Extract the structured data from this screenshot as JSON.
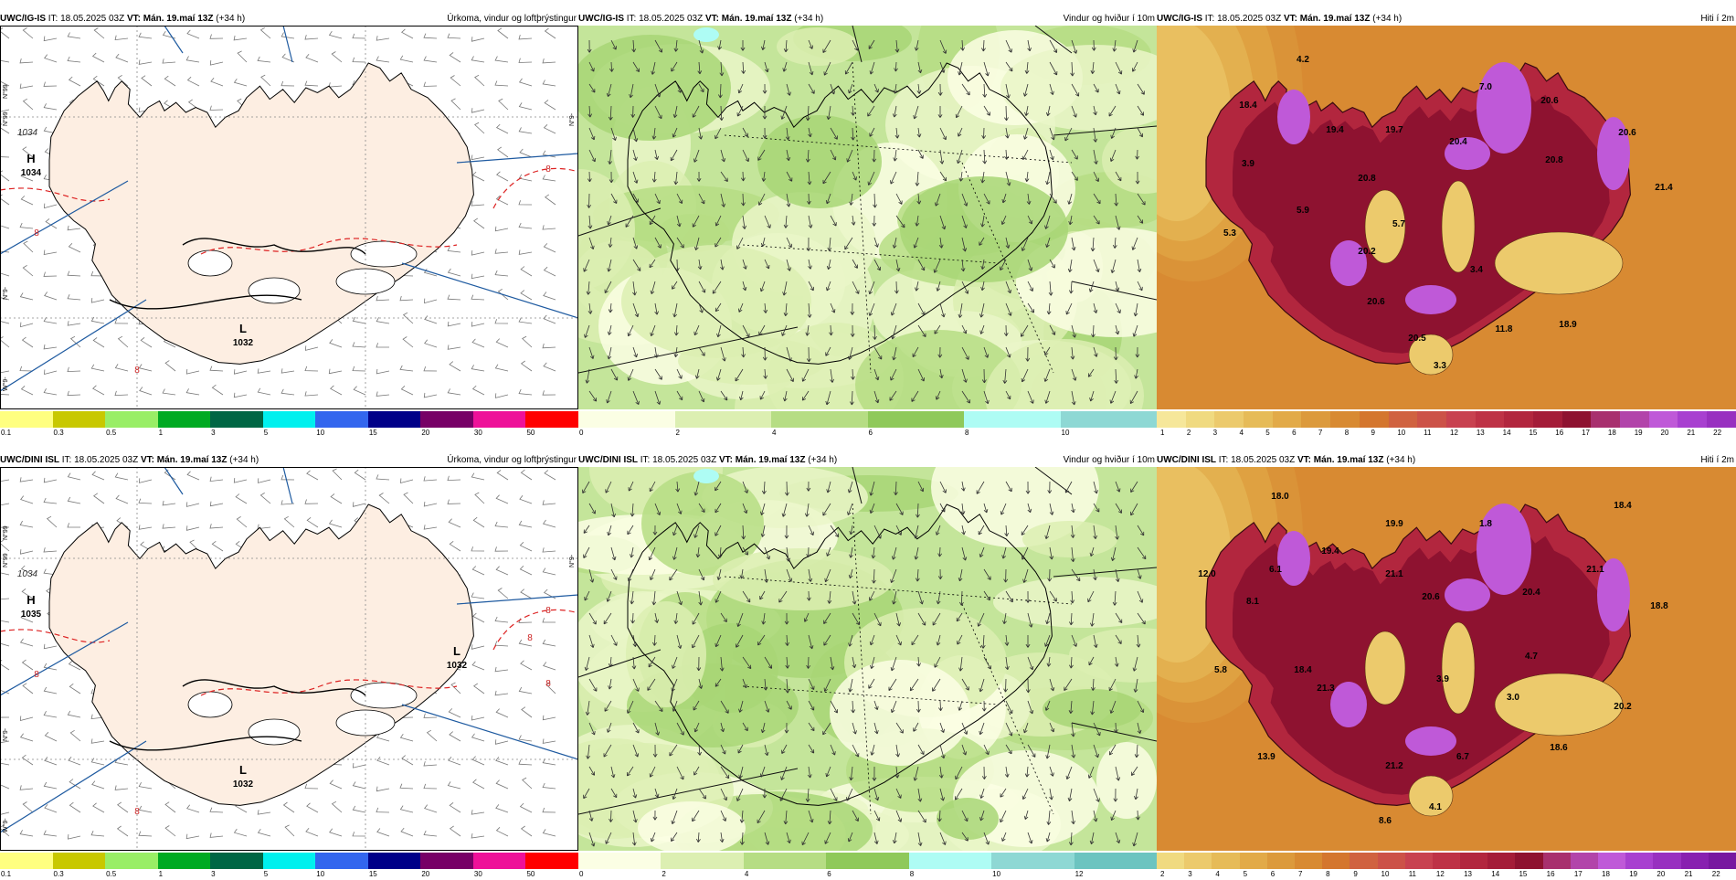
{
  "rows": [
    {
      "model": "UWC/IG-IS",
      "panels": [
        {
          "it_label": "IT:",
          "it_value": "18.05.2025 03Z",
          "vt_label": "VT:",
          "vt_value": "Mán. 19.maí 13Z",
          "lead": "(+34 h)",
          "title": "Úrkoma, vindur og loftþrýstingur",
          "side_labels": [
            "N°99",
            "N°99",
            "N°9-",
            "N°9-",
            "W°9-"
          ],
          "pressure_labels": [
            {
              "kind": "H",
              "value": "1034"
            },
            {
              "kind": "L",
              "value": "1032"
            }
          ],
          "isoline_labels": [
            "1034",
            "8",
            "8",
            "8"
          ],
          "colorbar": {
            "colors": [
              "#ffff80",
              "#c8c800",
              "#99ee66",
              "#00aa22",
              "#006644",
              "#00f0ee",
              "#3366ee",
              "#000088",
              "#770066",
              "#ee1199",
              "#ff0000"
            ],
            "ticks": [
              "0.1",
              "0.3",
              "0.5",
              "1",
              "3",
              "5",
              "10",
              "15",
              "20",
              "30",
              "50"
            ]
          }
        },
        {
          "it_label": "IT:",
          "it_value": "18.05.2025 03Z",
          "vt_label": "VT:",
          "vt_value": "Mán. 19.maí 13Z",
          "lead": "(+34 h)",
          "title": "Vindur og hviður í 10m",
          "colorbar": {
            "colors": [
              "#fbfee4",
              "#dcefb2",
              "#b6dd84",
              "#8fc95a",
              "#aefcf4",
              "#8ed8d4"
            ],
            "ticks": [
              "0",
              "2",
              "4",
              "6",
              "8",
              "10"
            ]
          }
        },
        {
          "it_label": "IT:",
          "it_value": "18.05.2025 03Z",
          "vt_label": "VT:",
          "vt_value": "Mán. 19.maí 13Z",
          "lead": "(+34 h)",
          "title": "Hiti í 2m",
          "temp_labels": [
            "4.2",
            "7.0",
            "20.6",
            "18.4",
            "19.4",
            "19.7",
            "20.4",
            "20.6",
            "3.9",
            "20.8",
            "20.8",
            "21.4",
            "5.9",
            "5.7",
            "5.3",
            "20.2",
            "3.4",
            "20.6",
            "20.5",
            "11.8",
            "18.9",
            "3.3"
          ],
          "colorbar": {
            "colors": [
              "#f6e79a",
              "#f0da80",
              "#ecca6c",
              "#e6bb58",
              "#e2aa48",
              "#dc9a3c",
              "#d88a32",
              "#d4762e",
              "#d06240",
              "#cc5248",
              "#c84250",
              "#be3246",
              "#b2263e",
              "#a41c38",
              "#8e1230",
              "#a8306e",
              "#b244aa",
              "#bf59d8",
              "#a840d0",
              "#9830c0"
            ],
            "ticks": [
              "1",
              "2",
              "3",
              "4",
              "5",
              "6",
              "7",
              "8",
              "9",
              "10",
              "11",
              "12",
              "13",
              "14",
              "15",
              "16",
              "17",
              "18",
              "19",
              "20",
              "21",
              "22"
            ]
          }
        }
      ]
    },
    {
      "model": "UWC/DINI ISL",
      "panels": [
        {
          "it_label": "IT:",
          "it_value": "18.05.2025 03Z",
          "vt_label": "VT:",
          "vt_value": "Mán. 19.maí 13Z",
          "lead": "(+34 h)",
          "title": "Úrkoma, vindur og loftþrýstingur",
          "side_labels": [
            "N°99",
            "N°99",
            "N°9-",
            "N°9-",
            "W°9-"
          ],
          "pressure_labels": [
            {
              "kind": "H",
              "value": "1035"
            },
            {
              "kind": "L",
              "value": "1032"
            },
            {
              "kind": "L",
              "value": "1032"
            }
          ],
          "isoline_labels": [
            "1034",
            "8",
            "8",
            "8",
            "8",
            "8"
          ],
          "colorbar": {
            "colors": [
              "#ffff80",
              "#c8c800",
              "#99ee66",
              "#00aa22",
              "#006644",
              "#00f0ee",
              "#3366ee",
              "#000088",
              "#770066",
              "#ee1199",
              "#ff0000"
            ],
            "ticks": [
              "0.1",
              "0.3",
              "0.5",
              "1",
              "3",
              "5",
              "10",
              "15",
              "20",
              "30",
              "50"
            ]
          }
        },
        {
          "it_label": "IT:",
          "it_value": "18.05.2025 03Z",
          "vt_label": "VT:",
          "vt_value": "Mán. 19.maí 13Z",
          "lead": "(+34 h)",
          "title": "Vindur og hviður í 10m",
          "colorbar": {
            "colors": [
              "#fbfee4",
              "#dcefb2",
              "#b6dd84",
              "#8fc95a",
              "#aefcf4",
              "#8ed8d4",
              "#6cc4c0"
            ],
            "ticks": [
              "0",
              "2",
              "4",
              "6",
              "8",
              "10",
              "12"
            ]
          }
        },
        {
          "it_label": "IT:",
          "it_value": "18.05.2025 03Z",
          "vt_label": "VT:",
          "vt_value": "Mán. 19.maí 13Z",
          "lead": "(+34 h)",
          "title": "Hiti í 2m",
          "temp_labels": [
            "18.0",
            "19.9",
            "18.4",
            "12.0",
            "6.1",
            "19.4",
            "1.8",
            "21.1",
            "21.1",
            "20.6",
            "20.4",
            "8.1",
            "18.8",
            "5.8",
            "18.4",
            "21.3",
            "3.9",
            "4.7",
            "3.0",
            "20.2",
            "13.9",
            "21.2",
            "6.7",
            "18.6",
            "4.1",
            "8.6"
          ],
          "colorbar": {
            "colors": [
              "#f0da80",
              "#ecca6c",
              "#e6bb58",
              "#e2aa48",
              "#dc9a3c",
              "#d88a32",
              "#d4762e",
              "#d06240",
              "#cc5248",
              "#c84250",
              "#be3246",
              "#b2263e",
              "#a41c38",
              "#8e1230",
              "#a8306e",
              "#b244aa",
              "#bf59d8",
              "#a840d0",
              "#9830c0",
              "#8820b0",
              "#7818a0"
            ],
            "ticks": [
              "2",
              "3",
              "4",
              "5",
              "6",
              "7",
              "8",
              "9",
              "10",
              "11",
              "12",
              "13",
              "14",
              "15",
              "16",
              "17",
              "18",
              "19",
              "20",
              "21",
              "22"
            ]
          }
        }
      ]
    }
  ]
}
